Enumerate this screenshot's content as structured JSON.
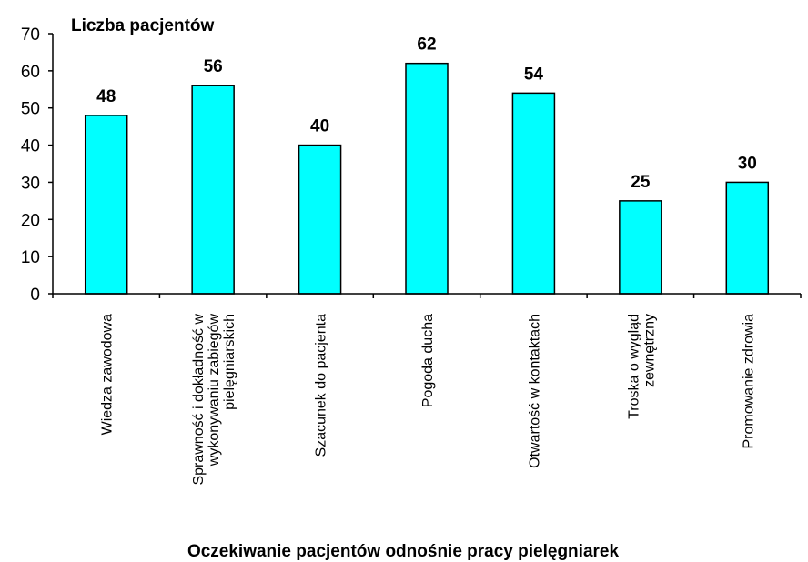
{
  "chart_data": {
    "type": "bar",
    "ylabel": "Liczba pacjentów",
    "xlabel": "Oczekiwanie pacjentów odnośnie pracy pielęgniarek",
    "ylim": [
      0,
      70
    ],
    "yticks": [
      0,
      10,
      20,
      30,
      40,
      50,
      60,
      70
    ],
    "grid": false,
    "legend": "none",
    "bar_color": "#00FFFF",
    "categories": [
      [
        "Wiedza zawodowa"
      ],
      [
        "Sprawność i dokładność w",
        "wykonywaniu zabiegów",
        "pielęgniarskich"
      ],
      [
        "Szacunek do pacjenta"
      ],
      [
        "Pogoda ducha"
      ],
      [
        "Otwartość w kontaktach"
      ],
      [
        "Troska o wygląd",
        "zewnętrzny"
      ],
      [
        "Promowanie zdrowia"
      ]
    ],
    "values": [
      48,
      56,
      40,
      62,
      54,
      25,
      30
    ]
  }
}
